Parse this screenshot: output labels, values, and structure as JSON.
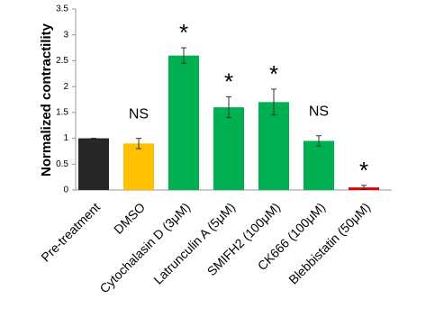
{
  "chart_data": {
    "type": "bar",
    "ylabel": "Normalized contractility",
    "categories": [
      "Pre-treatment",
      "DMSO",
      "Cytochalasin D (3μM)",
      "Latrunculin A (5μM)",
      "SMIFH2 (100μM)",
      "CK666 (100μM)",
      "Blebbistatin (50μM)"
    ],
    "values": [
      1,
      0.9,
      2.6,
      1.6,
      1.7,
      0.95,
      0.05
    ],
    "errors": [
      0,
      0.1,
      0.15,
      0.2,
      0.25,
      0.1,
      0.04
    ],
    "colors": [
      "#262626",
      "#ffc000",
      "#00b050",
      "#00b050",
      "#00b050",
      "#00b050",
      "#e00000"
    ],
    "annotations": [
      null,
      "NS",
      "*",
      "*",
      "*",
      "NS",
      "*"
    ],
    "ylim": [
      0,
      3.5
    ],
    "yticks": [
      0,
      0.5,
      1,
      1.5,
      2,
      2.5,
      3,
      3.5
    ],
    "grid": false
  }
}
